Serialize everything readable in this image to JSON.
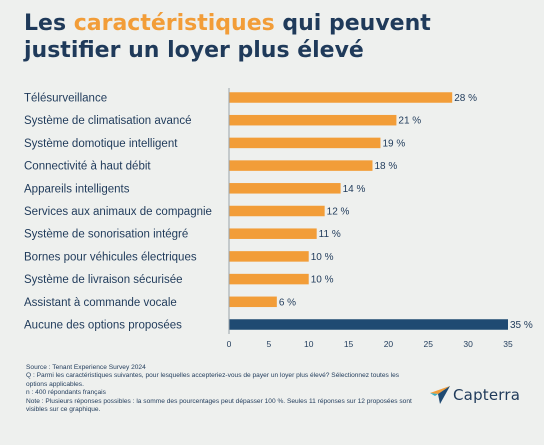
{
  "title": {
    "prefix": "Les ",
    "highlight": "caractéristiques",
    "suffix": " qui peuvent justifier un loyer plus élevé"
  },
  "chart_data": {
    "type": "bar",
    "orientation": "horizontal",
    "categories": [
      "Télésurveillance",
      "Système de climatisation avancé",
      "Système domotique intelligent",
      "Connectivité à haut débit",
      "Appareils intelligents",
      "Services aux animaux de compagnie",
      "Système de sonorisation intégré",
      "Bornes pour véhicules électriques",
      "Système de livraison sécurisée",
      "Assistant à commande vocale",
      "Aucune des options proposées"
    ],
    "values": [
      28,
      21,
      19,
      18,
      14,
      12,
      11,
      10,
      10,
      6,
      35
    ],
    "value_labels": [
      "28 %",
      "21 %",
      "19 %",
      "18 %",
      "14 %",
      "12 %",
      "11 %",
      "10 %",
      "10 %",
      "6 %",
      "35 %"
    ],
    "xlim": [
      0,
      35
    ],
    "xticks": [
      0,
      5,
      10,
      15,
      20,
      25,
      30,
      35
    ],
    "grid": false,
    "colors": {
      "default": "#f29d38",
      "highlight": "#1f4a72",
      "axis": "#9aa3ab"
    },
    "highlight_index": 10
  },
  "footnote": {
    "source": "Source : Tenant Experience Survey 2024",
    "question": "Q : Parmi les caractéristiques suivantes, pour lesquelles accepteriez-vous de payer un loyer plus élevé? Sélectionnez toutes les options applicables.",
    "n": "n : 400 répondants français",
    "note": "Note : Plusieurs réponses possibles : la somme des pourcentages peut dépasser 100 %. Seules 11 réponses sur 12 proposées sont visibles sur ce graphique."
  },
  "logo": {
    "text": "Capterra",
    "icon": "capterra-arrow-icon",
    "colors": {
      "blue": "#1f4a72",
      "orange": "#f29d38",
      "teal": "#3ab0c6"
    }
  }
}
